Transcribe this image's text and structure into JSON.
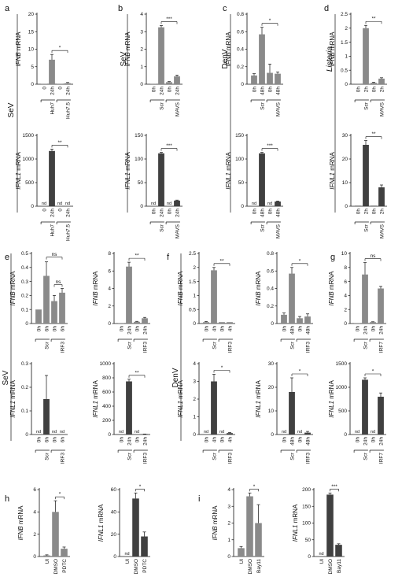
{
  "colors": {
    "ifnb": "#8a8a8a",
    "ifnl1": "#404040",
    "axis": "#111111"
  },
  "panel_labels": [
    "a",
    "b",
    "c",
    "d",
    "e",
    "f",
    "g",
    "h",
    "i"
  ],
  "virus_labels": [
    "SeV",
    "SeV",
    "DenV",
    "Listeria",
    "SeV",
    "DenV"
  ],
  "ylabels": {
    "ifnb": {
      "gene": "IFNB",
      "unit": " mRNA"
    },
    "ifnl1": {
      "gene": "IFNL1",
      "unit": " mRNA"
    }
  },
  "chart_data": [
    {
      "id": "a_ifnb",
      "type": "bar",
      "panel": "a",
      "gene": "IFNB",
      "ylim": [
        0,
        20
      ],
      "ticks": [
        0,
        5,
        10,
        15,
        20
      ],
      "categories": [
        "0",
        "24h",
        "0",
        "24h"
      ],
      "groups": [
        "Huh7",
        "Huh7.5"
      ],
      "values": [
        0.05,
        7.0,
        0.1,
        0.3
      ],
      "errors": [
        0,
        1.5,
        0,
        0.2
      ],
      "nd": [],
      "sig": [
        {
          "from": 1,
          "to": 3,
          "label": "*"
        }
      ]
    },
    {
      "id": "a_ifnl1",
      "type": "bar",
      "panel": "a",
      "gene": "IFNL1",
      "ylim": [
        0,
        1500
      ],
      "ticks": [
        0,
        500,
        1000,
        1500
      ],
      "categories": [
        "0",
        "24h",
        "0",
        "24h"
      ],
      "groups": [
        "Huh7",
        "Huh7.5"
      ],
      "values": [
        0,
        1170,
        0,
        0
      ],
      "errors": [
        0,
        40,
        0,
        0
      ],
      "nd": [
        0,
        2,
        3
      ],
      "sig": [
        {
          "from": 1,
          "to": 3,
          "label": "**"
        }
      ]
    },
    {
      "id": "b_ifnb",
      "type": "bar",
      "panel": "b",
      "gene": "IFNB",
      "ylim": [
        0,
        4
      ],
      "ticks": [
        0,
        1,
        2,
        3,
        4
      ],
      "categories": [
        "0h",
        "24h",
        "0h",
        "24h"
      ],
      "groups": [
        "Scr",
        "MAVS"
      ],
      "values": [
        0.02,
        3.25,
        0.12,
        0.45
      ],
      "errors": [
        0,
        0.1,
        0.03,
        0.07
      ],
      "nd": [],
      "sig": [
        {
          "from": 1,
          "to": 3,
          "label": "***"
        }
      ]
    },
    {
      "id": "b_ifnl1",
      "type": "bar",
      "panel": "b",
      "gene": "IFNL1",
      "ylim": [
        0,
        150
      ],
      "ticks": [
        0,
        50,
        100,
        150
      ],
      "categories": [
        "0h",
        "24h",
        "0h",
        "24h"
      ],
      "groups": [
        "Scr",
        "MAVS"
      ],
      "values": [
        0,
        112,
        0,
        12
      ],
      "errors": [
        0,
        2,
        0,
        1
      ],
      "nd": [
        0,
        2
      ],
      "sig": [
        {
          "from": 1,
          "to": 3,
          "label": "***"
        }
      ]
    },
    {
      "id": "c_ifnb",
      "type": "bar",
      "panel": "c",
      "gene": "IFNB",
      "ylim": [
        0,
        0.8
      ],
      "ticks": [
        0,
        0.2,
        0.4,
        0.6,
        0.8
      ],
      "categories": [
        "0h",
        "48h",
        "0h",
        "48h"
      ],
      "groups": [
        "Scr",
        "MAVS"
      ],
      "values": [
        0.1,
        0.57,
        0.13,
        0.12
      ],
      "errors": [
        0.02,
        0.08,
        0.1,
        0.02
      ],
      "nd": [],
      "sig": [
        {
          "from": 1,
          "to": 3,
          "label": "*"
        }
      ]
    },
    {
      "id": "c_ifnl1",
      "type": "bar",
      "panel": "c",
      "gene": "IFNL1",
      "ylim": [
        0,
        150
      ],
      "ticks": [
        0,
        50,
        100,
        150
      ],
      "categories": [
        "0h",
        "48h",
        "0h",
        "48h"
      ],
      "groups": [
        "Scr",
        "MAVS"
      ],
      "values": [
        0,
        112,
        0,
        10
      ],
      "errors": [
        0,
        2,
        0,
        1
      ],
      "nd": [
        0,
        2
      ],
      "sig": [
        {
          "from": 1,
          "to": 3,
          "label": "***"
        }
      ]
    },
    {
      "id": "d_ifnb",
      "type": "bar",
      "panel": "d",
      "gene": "IFNB",
      "ylim": [
        0,
        2.5
      ],
      "ticks": [
        0,
        0.5,
        1,
        1.5,
        2,
        2.5
      ],
      "categories": [
        "0h",
        "2h",
        "0h",
        "2h"
      ],
      "groups": [
        "Scr",
        "MAVS"
      ],
      "values": [
        0.02,
        2.0,
        0.05,
        0.2
      ],
      "errors": [
        0,
        0.1,
        0.02,
        0.03
      ],
      "nd": [],
      "sig": [
        {
          "from": 1,
          "to": 3,
          "label": "**"
        }
      ]
    },
    {
      "id": "d_ifnl1",
      "type": "bar",
      "panel": "d",
      "gene": "IFNL1",
      "ylim": [
        0,
        30
      ],
      "ticks": [
        0,
        10,
        20,
        30
      ],
      "categories": [
        "0h",
        "2h",
        "0h",
        "2h"
      ],
      "groups": [
        "Scr",
        "MAVS"
      ],
      "values": [
        0.2,
        26,
        0.2,
        8
      ],
      "errors": [
        0,
        1.8,
        0,
        1
      ],
      "nd": [],
      "sig": [
        {
          "from": 1,
          "to": 3,
          "label": "**"
        }
      ]
    },
    {
      "id": "e1_ifnb",
      "type": "bar",
      "panel": "e",
      "gene": "IFNB",
      "ylim": [
        0,
        0.5
      ],
      "ticks": [
        0,
        0.1,
        0.2,
        0.3,
        0.4,
        0.5
      ],
      "categories": [
        "0h",
        "6h",
        "0h",
        "6h"
      ],
      "groups": [
        "Scr",
        "IRF3"
      ],
      "values": [
        0.1,
        0.34,
        0.16,
        0.22
      ],
      "errors": [
        0,
        0.1,
        0.04,
        0.03
      ],
      "nd": [],
      "sig": [
        {
          "from": 1,
          "to": 3,
          "label": "ns"
        },
        {
          "from": 2,
          "to": 3,
          "label": "ns"
        }
      ]
    },
    {
      "id": "e1_ifnl1",
      "type": "bar",
      "panel": "e",
      "gene": "IFNL1",
      "ylim": [
        0,
        0.3
      ],
      "ticks": [
        0,
        0.1,
        0.2,
        0.3
      ],
      "categories": [
        "0h",
        "6h",
        "0h",
        "6h"
      ],
      "groups": [
        "Scr",
        "IRF3"
      ],
      "values": [
        0,
        0.15,
        0,
        0
      ],
      "errors": [
        0,
        0.1,
        0,
        0
      ],
      "nd": [
        0,
        2,
        3
      ],
      "sig": []
    },
    {
      "id": "e2_ifnb",
      "type": "bar",
      "panel": "e",
      "gene": "IFNB",
      "ylim": [
        0,
        8
      ],
      "ticks": [
        0,
        2,
        4,
        6,
        8
      ],
      "categories": [
        "0h",
        "24h",
        "0h",
        "24h"
      ],
      "groups": [
        "Scr",
        "IRF3"
      ],
      "values": [
        0.05,
        6.5,
        0.2,
        0.6
      ],
      "errors": [
        0,
        0.5,
        0.05,
        0.1
      ],
      "nd": [],
      "sig": [
        {
          "from": 1,
          "to": 3,
          "label": "**"
        }
      ]
    },
    {
      "id": "e2_ifnl1",
      "type": "bar",
      "panel": "e",
      "gene": "IFNL1",
      "ylim": [
        0,
        1000
      ],
      "ticks": [
        0,
        200,
        400,
        600,
        800,
        1000
      ],
      "categories": [
        "0h",
        "24h",
        "0h",
        "24h"
      ],
      "groups": [
        "Scr",
        "IRF3"
      ],
      "values": [
        0,
        750,
        0,
        5
      ],
      "errors": [
        0,
        30,
        0,
        2
      ],
      "nd": [
        0,
        2
      ],
      "sig": [
        {
          "from": 1,
          "to": 3,
          "label": "**"
        }
      ]
    },
    {
      "id": "f1_ifnb",
      "type": "bar",
      "panel": "f",
      "gene": "IFNB",
      "ylim": [
        0,
        2.5
      ],
      "ticks": [
        0,
        0.5,
        1,
        1.5,
        2,
        2.5
      ],
      "categories": [
        "0h",
        "4h",
        "0h",
        "4h"
      ],
      "groups": [
        "Scr",
        "IRF3"
      ],
      "values": [
        0.05,
        1.9,
        0.05,
        0.05
      ],
      "errors": [
        0.02,
        0.1,
        0,
        0
      ],
      "nd": [],
      "sig": [
        {
          "from": 1,
          "to": 3,
          "label": "**"
        }
      ]
    },
    {
      "id": "f1_ifnl1",
      "type": "bar",
      "panel": "f",
      "gene": "IFNL1",
      "ylim": [
        0,
        4
      ],
      "ticks": [
        0,
        1,
        2,
        3,
        4
      ],
      "categories": [
        "0h",
        "4h",
        "0h",
        "4h"
      ],
      "groups": [
        "Scr",
        "IRF3"
      ],
      "values": [
        0,
        3.0,
        0,
        0.08
      ],
      "errors": [
        0,
        0.4,
        0,
        0.03
      ],
      "nd": [
        0,
        2
      ],
      "sig": [
        {
          "from": 1,
          "to": 3,
          "label": "*"
        }
      ]
    },
    {
      "id": "f2_ifnb",
      "type": "bar",
      "panel": "f",
      "gene": "IFNB",
      "ylim": [
        0,
        0.8
      ],
      "ticks": [
        0,
        0.2,
        0.4,
        0.6,
        0.8
      ],
      "categories": [
        "0h",
        "48h",
        "0h",
        "48h"
      ],
      "groups": [
        "Scr",
        "IRF3"
      ],
      "values": [
        0.1,
        0.57,
        0.06,
        0.08
      ],
      "errors": [
        0.02,
        0.07,
        0.02,
        0.03
      ],
      "nd": [],
      "sig": [
        {
          "from": 1,
          "to": 3,
          "label": "*"
        }
      ]
    },
    {
      "id": "f2_ifnl1",
      "type": "bar",
      "panel": "f",
      "gene": "IFNL1",
      "ylim": [
        0,
        30
      ],
      "ticks": [
        0,
        10,
        20,
        30
      ],
      "categories": [
        "0h",
        "48h",
        "0h",
        "48h"
      ],
      "groups": [
        "Scr",
        "IRF3"
      ],
      "values": [
        0,
        18,
        0,
        0.8
      ],
      "errors": [
        0,
        6,
        0,
        0.5
      ],
      "nd": [
        0,
        2
      ],
      "sig": [
        {
          "from": 1,
          "to": 3,
          "label": "*"
        }
      ]
    },
    {
      "id": "g_ifnb",
      "type": "bar",
      "panel": "g",
      "gene": "IFNB",
      "ylim": [
        0,
        10
      ],
      "ticks": [
        0,
        2,
        4,
        6,
        8,
        10
      ],
      "categories": [
        "0h",
        "24h",
        "0h",
        "24h"
      ],
      "groups": [
        "Scr",
        "IRF7"
      ],
      "values": [
        0.05,
        7.0,
        0.2,
        5.0
      ],
      "errors": [
        0,
        1.7,
        0.05,
        0.3
      ],
      "nd": [],
      "sig": [
        {
          "from": 1,
          "to": 3,
          "label": "ns"
        }
      ]
    },
    {
      "id": "g_ifnl1",
      "type": "bar",
      "panel": "g",
      "gene": "IFNL1",
      "ylim": [
        0,
        1500
      ],
      "ticks": [
        0,
        500,
        1000,
        1500
      ],
      "categories": [
        "0h",
        "24h",
        "0h",
        "24h"
      ],
      "groups": [
        "Scr",
        "IRF7"
      ],
      "values": [
        0,
        1160,
        0,
        800
      ],
      "errors": [
        0,
        40,
        0,
        80
      ],
      "nd": [
        0,
        2
      ],
      "sig": [
        {
          "from": 1,
          "to": 3,
          "label": "*"
        }
      ]
    },
    {
      "id": "h_ifnb",
      "type": "bar",
      "panel": "h",
      "gene": "IFNB",
      "ylim": [
        0,
        6
      ],
      "ticks": [
        0,
        2,
        4,
        6
      ],
      "categories": [
        "UI",
        "DMSO",
        "PDTC"
      ],
      "groups": [],
      "values": [
        0.1,
        4.0,
        0.7
      ],
      "errors": [
        0.05,
        1.0,
        0.15
      ],
      "nd": [],
      "sig": [
        {
          "from": 1,
          "to": 2,
          "label": "*"
        }
      ]
    },
    {
      "id": "h_ifnl1",
      "type": "bar",
      "panel": "h",
      "gene": "IFNL1",
      "ylim": [
        0,
        60
      ],
      "ticks": [
        0,
        20,
        40,
        60
      ],
      "categories": [
        "UI",
        "DMSO",
        "PDTC"
      ],
      "groups": [],
      "values": [
        0,
        52,
        18
      ],
      "errors": [
        0,
        5,
        4
      ],
      "nd": [
        0
      ],
      "sig": [
        {
          "from": 1,
          "to": 2,
          "label": "*"
        }
      ]
    },
    {
      "id": "i_ifnb",
      "type": "bar",
      "panel": "i",
      "gene": "IFNB",
      "ylim": [
        0,
        4
      ],
      "ticks": [
        0,
        1,
        2,
        3,
        4
      ],
      "categories": [
        "UI",
        "DMSO",
        "Bay11"
      ],
      "groups": [],
      "values": [
        0.5,
        3.6,
        2.0
      ],
      "errors": [
        0.1,
        0.2,
        1.1
      ],
      "nd": [],
      "sig": [
        {
          "from": 1,
          "to": 2,
          "label": "*"
        }
      ]
    },
    {
      "id": "i_ifnl1",
      "type": "bar",
      "panel": "i",
      "gene": "IFNL1",
      "ylim": [
        0,
        200
      ],
      "ticks": [
        0,
        50,
        100,
        150,
        200
      ],
      "categories": [
        "UI",
        "DMSO",
        "Bay11"
      ],
      "groups": [],
      "values": [
        0,
        185,
        35
      ],
      "errors": [
        0,
        5,
        3
      ],
      "nd": [
        0
      ],
      "sig": [
        {
          "from": 1,
          "to": 2,
          "label": "***"
        }
      ]
    }
  ]
}
